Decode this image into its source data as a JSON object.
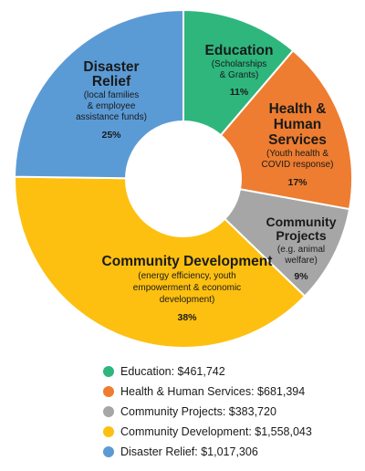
{
  "chart_data": {
    "type": "pie",
    "style": "donut",
    "categories": [
      "Education",
      "Health & Human Services",
      "Community Projects",
      "Community Development",
      "Disaster Relief"
    ],
    "values": [
      461742,
      681394,
      383720,
      1558043,
      1017306
    ],
    "percent_labels": [
      "11%",
      "17%",
      "9%",
      "38%",
      "25%"
    ],
    "colors": [
      "#2eb67d",
      "#ee7d31",
      "#a6a6a6",
      "#fdc010",
      "#5b9bd5"
    ],
    "slice_labels": [
      {
        "title": [
          "Education"
        ],
        "sub": [
          "(Scholarships",
          "& Grants)"
        ],
        "pct": "11%"
      },
      {
        "title": [
          "Health &",
          "Human",
          "Services"
        ],
        "sub": [
          "(Youth health &",
          "COVID response)"
        ],
        "pct": "17%"
      },
      {
        "title": [
          "Community",
          "Projects"
        ],
        "sub": [
          "(e.g. animal",
          "welfare)"
        ],
        "pct": "9%"
      },
      {
        "title": [
          "Community Development"
        ],
        "sub": [
          "(energy efficiency, youth",
          "empowerment & economic",
          "development)"
        ],
        "pct": "38%"
      },
      {
        "title": [
          "Disaster",
          "Relief"
        ],
        "sub": [
          "(local families",
          "& employee",
          "assistance funds)"
        ],
        "pct": "25%"
      }
    ],
    "legend": [
      {
        "label": "Education: $461,742",
        "color": "#2eb67d"
      },
      {
        "label": "Health & Human Services: $681,394",
        "color": "#ee7d31"
      },
      {
        "label": "Community Projects: $383,720",
        "color": "#a6a6a6"
      },
      {
        "label": "Community Development: $1,558,043",
        "color": "#fdc010"
      },
      {
        "label": "Disaster Relief: $1,017,306",
        "color": "#5b9bd5"
      }
    ],
    "legend_position": "bottom"
  }
}
